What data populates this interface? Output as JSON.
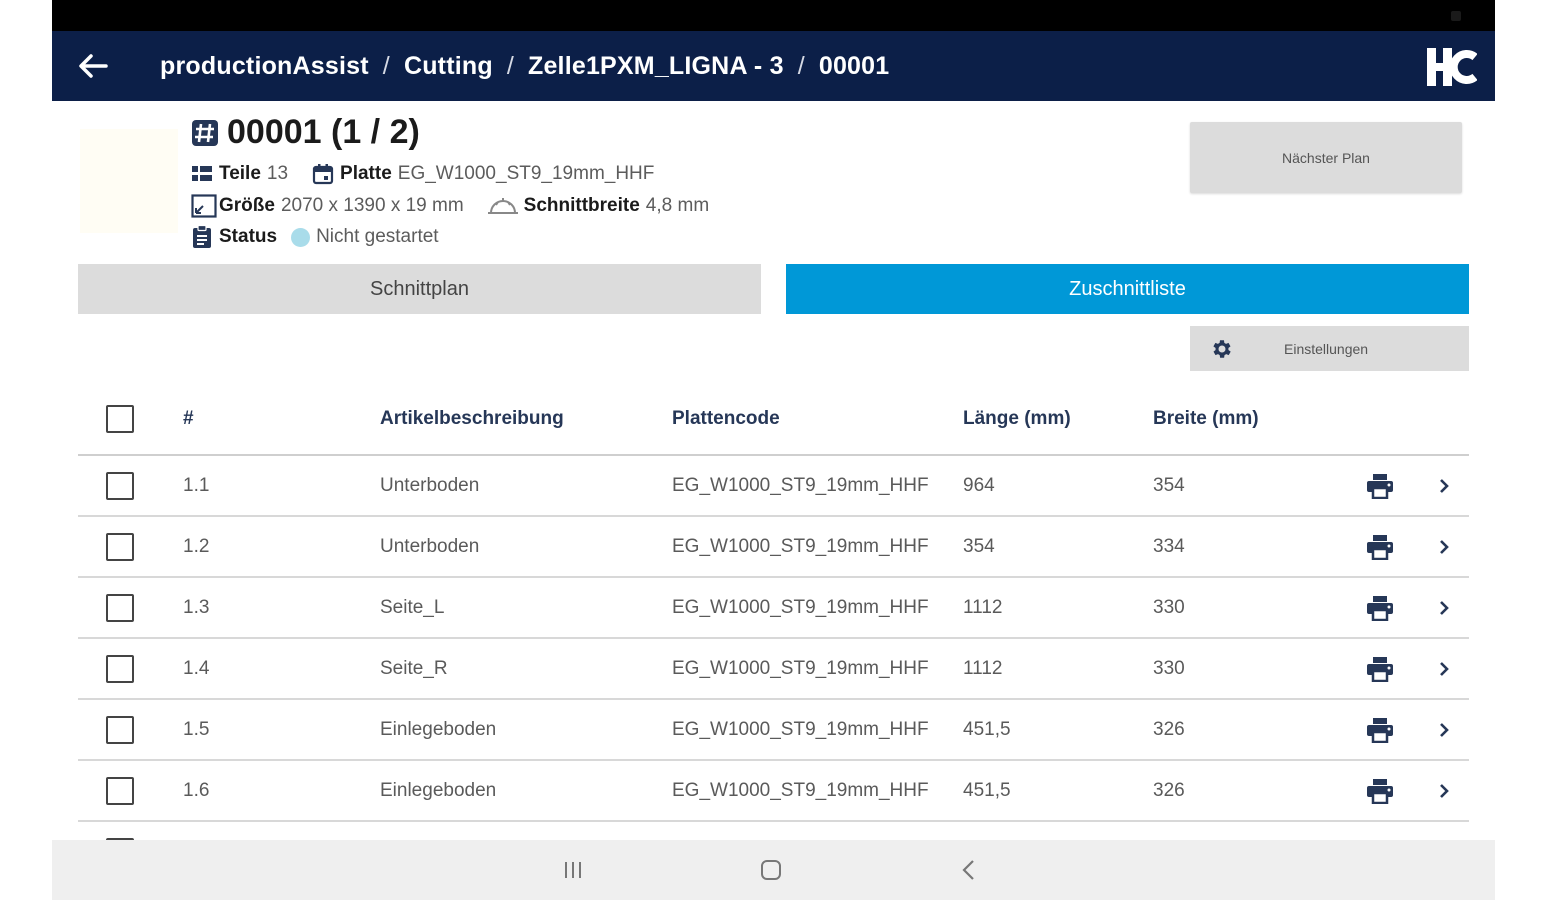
{
  "appbar": {
    "breadcrumbs": [
      "productionAssist",
      "Cutting",
      "Zelle1PXM_LIGNA - 3",
      "00001"
    ],
    "separator": "/",
    "logo_text": "HC"
  },
  "plan": {
    "title": "00001 (1 / 2)",
    "parts_label": "Teile",
    "parts_value": "13",
    "board_label": "Platte",
    "board_value": "EG_W1000_ST9_19mm_HHF",
    "size_label": "Größe",
    "size_value": "2070 x 1390 x 19 mm",
    "kerf_label": "Schnittbreite",
    "kerf_value": "4,8 mm",
    "status_label": "Status",
    "status_value": "Nicht gestartet",
    "status_color": "#a9dcea",
    "next_plan_label": "Nächster Plan"
  },
  "tabs": [
    {
      "label": "Schnittplan",
      "active": false
    },
    {
      "label": "Zuschnittliste",
      "active": true
    }
  ],
  "settings_label": "Einstellungen",
  "table": {
    "headers": [
      "#",
      "Artikelbeschreibung",
      "Plattencode",
      "Länge (mm)",
      "Breite (mm)"
    ],
    "rows": [
      {
        "num": "1.1",
        "desc": "Unterboden",
        "code": "EG_W1000_ST9_19mm_HHF",
        "length": "964",
        "width": "354"
      },
      {
        "num": "1.2",
        "desc": "Unterboden",
        "code": "EG_W1000_ST9_19mm_HHF",
        "length": "354",
        "width": "334"
      },
      {
        "num": "1.3",
        "desc": "Seite_L",
        "code": "EG_W1000_ST9_19mm_HHF",
        "length": "1112",
        "width": "330"
      },
      {
        "num": "1.4",
        "desc": "Seite_R",
        "code": "EG_W1000_ST9_19mm_HHF",
        "length": "1112",
        "width": "330"
      },
      {
        "num": "1.5",
        "desc": "Einlegeboden",
        "code": "EG_W1000_ST9_19mm_HHF",
        "length": "451,5",
        "width": "326"
      },
      {
        "num": "1.6",
        "desc": "Einlegeboden",
        "code": "EG_W1000_ST9_19mm_HHF",
        "length": "451,5",
        "width": "326"
      }
    ]
  },
  "colors": {
    "appbar": "#0c1f48",
    "accent": "#0098d7",
    "button_grey": "#dcdcdc"
  }
}
